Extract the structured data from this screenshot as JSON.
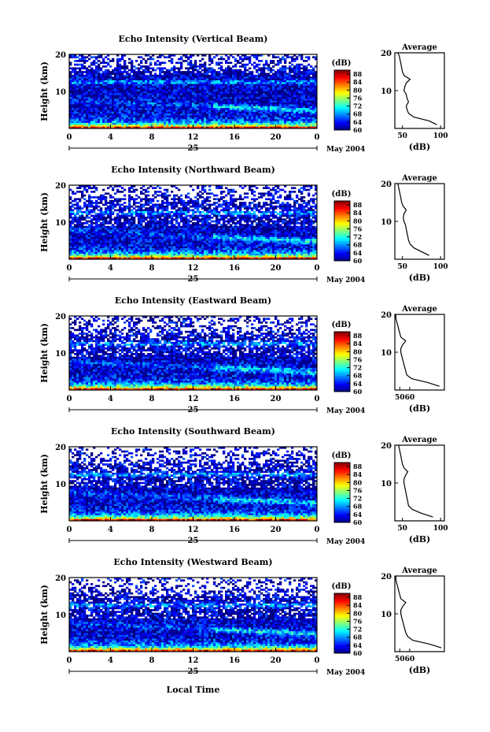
{
  "figure": {
    "date_label": "May 2004",
    "day_label": "25",
    "x_axis_title": "Local Time"
  },
  "chart_data": [
    {
      "type": "heatmap",
      "title": "Echo Intensity (Vertical Beam)",
      "ylabel": "Height (km)",
      "xlim": [
        0,
        24
      ],
      "ylim": [
        0,
        20
      ],
      "x_ticks": [
        "0",
        "4",
        "8",
        "12",
        "16",
        "20",
        "0"
      ],
      "y_ticks": [
        "10",
        "20"
      ],
      "colorbar": {
        "label": "(dB)",
        "ticks": [
          "60",
          "64",
          "68",
          "72",
          "76",
          "80",
          "84",
          "88"
        ],
        "range": [
          60,
          90
        ]
      },
      "profile": {
        "title": "Average",
        "xlabel": "(dB)",
        "x_ticks": [
          "50",
          "100"
        ],
        "xlim": [
          40,
          105
        ],
        "height_km": [
          1,
          2,
          3,
          4,
          5,
          6,
          7,
          8,
          9,
          10,
          11,
          12,
          13,
          14,
          15,
          16,
          17,
          18,
          19,
          20
        ],
        "db": [
          95,
          85,
          65,
          58,
          56,
          55,
          58,
          56,
          55,
          52,
          53,
          55,
          60,
          52,
          50,
          49,
          48,
          47,
          46,
          44
        ]
      }
    },
    {
      "type": "heatmap",
      "title": "Echo Intensity (Northward Beam)",
      "ylabel": "Height (km)",
      "xlim": [
        0,
        24
      ],
      "ylim": [
        0,
        20
      ],
      "x_ticks": [
        "0",
        "4",
        "8",
        "12",
        "16",
        "20",
        "0"
      ],
      "y_ticks": [
        "10",
        "20"
      ],
      "colorbar": {
        "label": "(dB)",
        "ticks": [
          "60",
          "64",
          "68",
          "72",
          "76",
          "80",
          "84",
          "88"
        ],
        "range": [
          60,
          90
        ]
      },
      "profile": {
        "title": "Average",
        "xlabel": "(dB)",
        "x_ticks": [
          "50",
          "100"
        ],
        "xlim": [
          40,
          105
        ],
        "height_km": [
          1,
          2,
          3,
          4,
          5,
          6,
          7,
          8,
          9,
          10,
          11,
          12,
          13,
          14,
          15,
          16,
          17,
          18,
          19,
          20
        ],
        "db": [
          85,
          75,
          65,
          60,
          58,
          57,
          56,
          55,
          54,
          52,
          51,
          52,
          55,
          51,
          49,
          48,
          47,
          46,
          45,
          44
        ]
      }
    },
    {
      "type": "heatmap",
      "title": "Echo Intensity (Eastward Beam)",
      "ylabel": "Height (km)",
      "xlim": [
        0,
        24
      ],
      "ylim": [
        0,
        20
      ],
      "x_ticks": [
        "0",
        "4",
        "8",
        "12",
        "16",
        "20",
        "0"
      ],
      "y_ticks": [
        "10",
        "20"
      ],
      "colorbar": {
        "label": "(dB)",
        "ticks": [
          "60",
          "64",
          "68",
          "72",
          "76",
          "80",
          "84",
          "88"
        ],
        "range": [
          60,
          90
        ]
      },
      "profile": {
        "title": "Average",
        "xlabel": "(dB)",
        "x_ticks": [
          "50",
          "60"
        ],
        "xlim": [
          45,
          95
        ],
        "height_km": [
          1,
          2,
          3,
          4,
          5,
          6,
          7,
          8,
          9,
          10,
          11,
          12,
          13,
          14,
          15,
          16,
          17,
          18,
          19,
          20
        ],
        "db": [
          90,
          78,
          62,
          57,
          56,
          55,
          54,
          53,
          52,
          51,
          51,
          53,
          56,
          51,
          50,
          49,
          48,
          47,
          46,
          46
        ]
      }
    },
    {
      "type": "heatmap",
      "title": "Echo Intensity (Southward Beam)",
      "ylabel": "Height (km)",
      "xlim": [
        0,
        24
      ],
      "ylim": [
        0,
        20
      ],
      "x_ticks": [
        "0",
        "4",
        "8",
        "12",
        "16",
        "20",
        "0"
      ],
      "y_ticks": [
        "10",
        "20"
      ],
      "colorbar": {
        "label": "(dB)",
        "ticks": [
          "60",
          "64",
          "68",
          "72",
          "76",
          "80",
          "84",
          "88"
        ],
        "range": [
          60,
          90
        ]
      },
      "profile": {
        "title": "Average",
        "xlabel": "(dB)",
        "x_ticks": [
          "50",
          "100"
        ],
        "xlim": [
          40,
          105
        ],
        "height_km": [
          1,
          2,
          3,
          4,
          5,
          6,
          7,
          8,
          9,
          10,
          11,
          12,
          13,
          14,
          15,
          16,
          17,
          18,
          19,
          20
        ],
        "db": [
          90,
          75,
          63,
          58,
          57,
          56,
          55,
          54,
          53,
          52,
          52,
          54,
          57,
          52,
          50,
          49,
          48,
          47,
          46,
          45
        ]
      }
    },
    {
      "type": "heatmap",
      "title": "Echo Intensity (Westward Beam)",
      "ylabel": "Height (km)",
      "xlim": [
        0,
        24
      ],
      "ylim": [
        0,
        20
      ],
      "x_ticks": [
        "0",
        "4",
        "8",
        "12",
        "16",
        "20",
        "0"
      ],
      "y_ticks": [
        "10",
        "20"
      ],
      "colorbar": {
        "label": "(dB)",
        "ticks": [
          "60",
          "64",
          "68",
          "72",
          "76",
          "80",
          "84",
          "88"
        ],
        "range": [
          60,
          90
        ]
      },
      "profile": {
        "title": "Average",
        "xlabel": "(dB)",
        "x_ticks": [
          "50",
          "60"
        ],
        "xlim": [
          45,
          95
        ],
        "height_km": [
          1,
          2,
          3,
          4,
          5,
          6,
          7,
          8,
          9,
          10,
          11,
          12,
          13,
          14,
          15,
          16,
          17,
          18,
          19,
          20
        ],
        "db": [
          92,
          80,
          63,
          58,
          56,
          55,
          54,
          53,
          52,
          51,
          51,
          53,
          56,
          51,
          50,
          49,
          48,
          47,
          46,
          46
        ]
      }
    }
  ]
}
